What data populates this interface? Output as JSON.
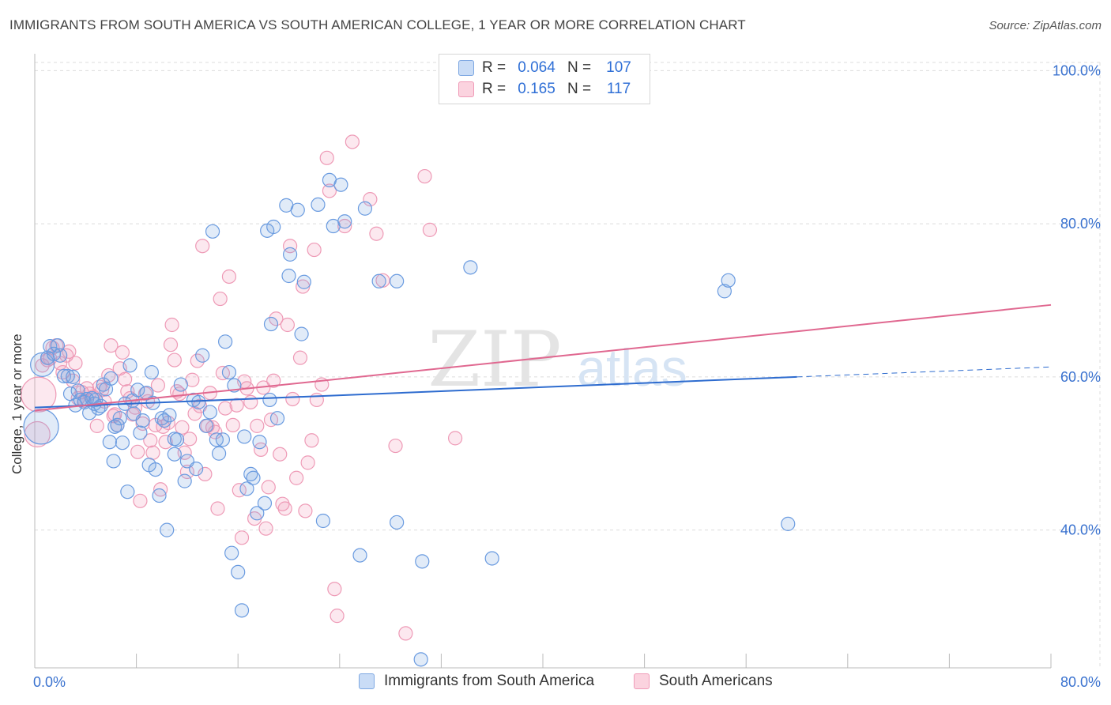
{
  "header": {
    "title": "IMMIGRANTS FROM SOUTH AMERICA VS SOUTH AMERICAN COLLEGE, 1 YEAR OR MORE CORRELATION CHART",
    "source": "Source: ZipAtlas.com"
  },
  "watermark": {
    "zip": "ZIP",
    "atlas": "atlas"
  },
  "legend_top": {
    "rows": [
      {
        "r_label": "R =",
        "r_value": "0.064",
        "n_label": "N =",
        "n_value": "107",
        "color": "#aac8ef"
      },
      {
        "r_label": "R =",
        "r_value": "0.165",
        "n_label": "N =",
        "n_value": "117",
        "color": "#f6b7cb"
      }
    ]
  },
  "legend_bottom": {
    "items": [
      {
        "label": "Immigrants from South America",
        "color": "#aac8ef"
      },
      {
        "label": "South Americans",
        "color": "#f6b7cb"
      }
    ]
  },
  "colors": {
    "blue_fill": "rgba(120,165,225,0.22)",
    "blue_stroke": "#6a9be0",
    "blue_line": "#2e6ccf",
    "pink_fill": "rgba(240,150,180,0.22)",
    "pink_stroke": "#ee9ab6",
    "pink_line": "#e06890",
    "tick_text": "#3a72cf",
    "grid": "#dcdcdc"
  },
  "chart_data": {
    "type": "scatter",
    "title": "IMMIGRANTS FROM SOUTH AMERICA VS SOUTH AMERICAN COLLEGE, 1 YEAR OR MORE CORRELATION CHART",
    "xlabel": "",
    "ylabel": "College, 1 year or more",
    "xlim": [
      0,
      80
    ],
    "ylim": [
      22,
      102
    ],
    "x_tick_labels": [
      "0.0%",
      "80.0%"
    ],
    "y_ticks": [
      40,
      60,
      80,
      100
    ],
    "y_tick_labels": [
      "40.0%",
      "60.0%",
      "80.0%",
      "100.0%"
    ],
    "grid": true,
    "legend_position": "top-center",
    "series": [
      {
        "name": "Immigrants from South America",
        "r": 0.064,
        "n": 107,
        "trend": {
          "x0": 0,
          "y0": 56.0,
          "x1": 60,
          "y1": 60.0,
          "dashed_to_x": 80,
          "dashed_to_y": 61.3
        },
        "points": [
          [
            0.5,
            53.5
          ],
          [
            0.6,
            61.6
          ],
          [
            1.0,
            62.5
          ],
          [
            1.2,
            64.0
          ],
          [
            1.5,
            63.0
          ],
          [
            1.8,
            64.1
          ],
          [
            2.0,
            62.8
          ],
          [
            2.3,
            60.1
          ],
          [
            2.6,
            60.1
          ],
          [
            2.8,
            57.8
          ],
          [
            3.0,
            60.0
          ],
          [
            3.2,
            56.3
          ],
          [
            3.4,
            58.2
          ],
          [
            3.6,
            57.0
          ],
          [
            3.9,
            56.7
          ],
          [
            4.1,
            57.1
          ],
          [
            4.3,
            55.3
          ],
          [
            4.5,
            57.2
          ],
          [
            4.7,
            56.5
          ],
          [
            4.8,
            57.0
          ],
          [
            5.0,
            55.9
          ],
          [
            5.2,
            56.2
          ],
          [
            5.4,
            59.0
          ],
          [
            5.6,
            58.4
          ],
          [
            5.9,
            51.5
          ],
          [
            6.0,
            59.8
          ],
          [
            6.2,
            49.0
          ],
          [
            6.3,
            53.5
          ],
          [
            6.5,
            53.7
          ],
          [
            6.7,
            54.6
          ],
          [
            6.9,
            51.4
          ],
          [
            7.1,
            56.5
          ],
          [
            7.3,
            45.0
          ],
          [
            7.5,
            61.5
          ],
          [
            7.7,
            56.9
          ],
          [
            7.8,
            55.2
          ],
          [
            8.1,
            58.3
          ],
          [
            8.3,
            52.7
          ],
          [
            8.5,
            54.3
          ],
          [
            8.8,
            57.9
          ],
          [
            9.0,
            48.5
          ],
          [
            9.2,
            60.6
          ],
          [
            9.3,
            56.6
          ],
          [
            9.5,
            47.9
          ],
          [
            9.8,
            44.5
          ],
          [
            10.0,
            54.6
          ],
          [
            10.2,
            54.3
          ],
          [
            10.4,
            40.0
          ],
          [
            10.6,
            55.0
          ],
          [
            11.0,
            51.9
          ],
          [
            11.0,
            49.9
          ],
          [
            11.2,
            51.8
          ],
          [
            11.5,
            59.0
          ],
          [
            11.8,
            46.4
          ],
          [
            12.0,
            49.0
          ],
          [
            12.5,
            57.0
          ],
          [
            12.7,
            48.0
          ],
          [
            12.9,
            56.7
          ],
          [
            13.2,
            62.8
          ],
          [
            13.5,
            53.6
          ],
          [
            13.8,
            55.4
          ],
          [
            14.0,
            79.0
          ],
          [
            14.3,
            51.8
          ],
          [
            14.5,
            50.0
          ],
          [
            14.8,
            51.8
          ],
          [
            15.0,
            64.6
          ],
          [
            15.3,
            60.6
          ],
          [
            15.5,
            37.0
          ],
          [
            15.7,
            58.9
          ],
          [
            16.0,
            34.5
          ],
          [
            16.3,
            29.5
          ],
          [
            16.5,
            52.2
          ],
          [
            16.7,
            45.4
          ],
          [
            17.0,
            47.3
          ],
          [
            17.2,
            46.8
          ],
          [
            17.5,
            42.2
          ],
          [
            17.7,
            51.5
          ],
          [
            18.1,
            43.5
          ],
          [
            18.3,
            79.1
          ],
          [
            18.5,
            57.0
          ],
          [
            18.6,
            66.9
          ],
          [
            18.8,
            79.6
          ],
          [
            19.1,
            54.6
          ],
          [
            19.8,
            82.4
          ],
          [
            20.0,
            73.2
          ],
          [
            20.1,
            76.0
          ],
          [
            20.7,
            81.8
          ],
          [
            21.0,
            65.6
          ],
          [
            21.2,
            72.4
          ],
          [
            22.3,
            82.5
          ],
          [
            22.7,
            41.2
          ],
          [
            23.2,
            85.7
          ],
          [
            23.5,
            79.7
          ],
          [
            24.1,
            85.1
          ],
          [
            24.4,
            80.3
          ],
          [
            25.6,
            36.7
          ],
          [
            26.0,
            82.0
          ],
          [
            27.1,
            72.5
          ],
          [
            28.5,
            41.0
          ],
          [
            28.5,
            72.5
          ],
          [
            30.4,
            23.1
          ],
          [
            30.5,
            35.9
          ],
          [
            34.3,
            74.3
          ],
          [
            36.0,
            36.3
          ],
          [
            54.3,
            71.2
          ],
          [
            54.6,
            72.6
          ],
          [
            59.3,
            40.8
          ]
        ]
      },
      {
        "name": "South Americans",
        "r": 0.165,
        "n": 117,
        "trend": {
          "x0": 0,
          "y0": 55.6,
          "x1": 80,
          "y1": 69.4
        },
        "points": [
          [
            0.2,
            52.5
          ],
          [
            0.3,
            57.7
          ],
          [
            0.6,
            61.5
          ],
          [
            1.0,
            62.2
          ],
          [
            1.2,
            62.4
          ],
          [
            1.4,
            63.8
          ],
          [
            1.7,
            64.1
          ],
          [
            2.0,
            61.8
          ],
          [
            2.2,
            60.6
          ],
          [
            2.5,
            62.8
          ],
          [
            2.7,
            63.3
          ],
          [
            3.0,
            59.5
          ],
          [
            3.2,
            61.8
          ],
          [
            3.4,
            57.2
          ],
          [
            3.7,
            58.0
          ],
          [
            3.9,
            56.9
          ],
          [
            4.1,
            58.5
          ],
          [
            4.3,
            57.8
          ],
          [
            4.6,
            57.4
          ],
          [
            4.9,
            53.6
          ],
          [
            5.1,
            58.7
          ],
          [
            5.3,
            58.3
          ],
          [
            5.5,
            56.8
          ],
          [
            5.8,
            60.2
          ],
          [
            6.0,
            64.1
          ],
          [
            6.2,
            54.9
          ],
          [
            6.3,
            55.1
          ],
          [
            6.5,
            53.7
          ],
          [
            6.7,
            61.1
          ],
          [
            6.9,
            63.2
          ],
          [
            7.1,
            59.7
          ],
          [
            7.3,
            58.1
          ],
          [
            7.5,
            57.2
          ],
          [
            7.7,
            55.1
          ],
          [
            7.9,
            56.0
          ],
          [
            8.1,
            50.2
          ],
          [
            8.3,
            43.8
          ],
          [
            8.5,
            53.9
          ],
          [
            8.7,
            57.8
          ],
          [
            8.9,
            56.8
          ],
          [
            9.1,
            51.7
          ],
          [
            9.3,
            50.1
          ],
          [
            9.5,
            53.7
          ],
          [
            9.7,
            58.9
          ],
          [
            9.9,
            45.3
          ],
          [
            10.1,
            53.5
          ],
          [
            10.3,
            51.5
          ],
          [
            10.5,
            54.0
          ],
          [
            10.7,
            64.2
          ],
          [
            10.8,
            66.8
          ],
          [
            11.0,
            62.2
          ],
          [
            11.2,
            58.1
          ],
          [
            11.4,
            57.8
          ],
          [
            11.6,
            53.4
          ],
          [
            11.8,
            50.1
          ],
          [
            12.0,
            47.6
          ],
          [
            12.2,
            51.9
          ],
          [
            12.4,
            59.6
          ],
          [
            12.6,
            55.2
          ],
          [
            12.8,
            62.1
          ],
          [
            13.0,
            56.2
          ],
          [
            13.2,
            77.1
          ],
          [
            13.4,
            47.3
          ],
          [
            13.6,
            53.6
          ],
          [
            13.8,
            57.9
          ],
          [
            14.0,
            53.4
          ],
          [
            14.2,
            52.8
          ],
          [
            14.4,
            42.8
          ],
          [
            14.6,
            70.2
          ],
          [
            14.8,
            60.5
          ],
          [
            15.0,
            55.9
          ],
          [
            15.3,
            73.1
          ],
          [
            15.6,
            53.7
          ],
          [
            15.9,
            56.3
          ],
          [
            16.1,
            45.2
          ],
          [
            16.3,
            39.0
          ],
          [
            16.5,
            59.4
          ],
          [
            16.7,
            58.5
          ],
          [
            17.0,
            56.7
          ],
          [
            17.3,
            41.5
          ],
          [
            17.5,
            53.6
          ],
          [
            17.8,
            50.5
          ],
          [
            18.0,
            58.6
          ],
          [
            18.2,
            40.2
          ],
          [
            18.4,
            45.6
          ],
          [
            18.6,
            54.4
          ],
          [
            18.8,
            59.5
          ],
          [
            19.0,
            67.6
          ],
          [
            19.3,
            49.9
          ],
          [
            19.5,
            43.4
          ],
          [
            19.7,
            42.8
          ],
          [
            19.9,
            66.8
          ],
          [
            20.1,
            77.1
          ],
          [
            20.3,
            57.1
          ],
          [
            20.6,
            46.8
          ],
          [
            20.9,
            62.5
          ],
          [
            21.1,
            71.8
          ],
          [
            21.3,
            42.5
          ],
          [
            21.5,
            48.8
          ],
          [
            21.8,
            51.7
          ],
          [
            22.0,
            76.6
          ],
          [
            22.2,
            57.0
          ],
          [
            22.6,
            59.0
          ],
          [
            23.0,
            88.6
          ],
          [
            23.2,
            84.3
          ],
          [
            23.6,
            32.3
          ],
          [
            23.8,
            28.8
          ],
          [
            24.4,
            79.7
          ],
          [
            25.0,
            90.7
          ],
          [
            26.4,
            83.2
          ],
          [
            26.9,
            78.7
          ],
          [
            27.4,
            72.6
          ],
          [
            28.4,
            51.0
          ],
          [
            29.2,
            26.5
          ],
          [
            30.7,
            86.2
          ],
          [
            31.1,
            79.2
          ],
          [
            33.1,
            52.0
          ]
        ]
      }
    ]
  }
}
